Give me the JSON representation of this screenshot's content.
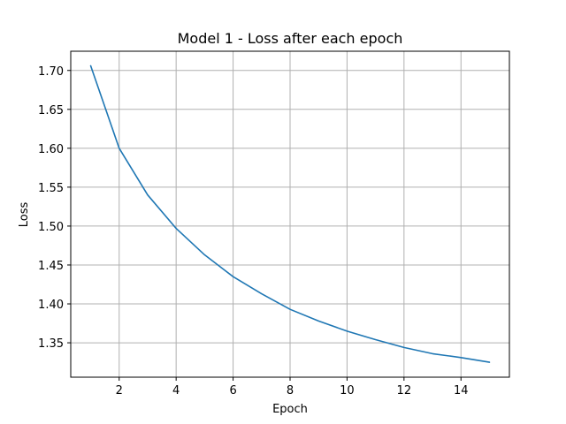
{
  "chart_data": {
    "type": "line",
    "title": "Model 1 - Loss after each epoch",
    "xlabel": "Epoch",
    "ylabel": "Loss",
    "xlim": [
      0.3,
      15.7
    ],
    "ylim": [
      1.3058,
      1.7247
    ],
    "xticks": [
      2,
      4,
      6,
      8,
      10,
      12,
      14
    ],
    "yticks": [
      1.35,
      1.4,
      1.45,
      1.5,
      1.55,
      1.6,
      1.65,
      1.7
    ],
    "grid": true,
    "color": "#1f77b4",
    "x": [
      1,
      2,
      3,
      4,
      5,
      6,
      7,
      8,
      9,
      10,
      11,
      12,
      13,
      14,
      15
    ],
    "y": [
      1.706,
      1.6,
      1.54,
      1.497,
      1.463,
      1.435,
      1.413,
      1.393,
      1.378,
      1.365,
      1.354,
      1.344,
      1.336,
      1.331,
      1.325
    ]
  }
}
